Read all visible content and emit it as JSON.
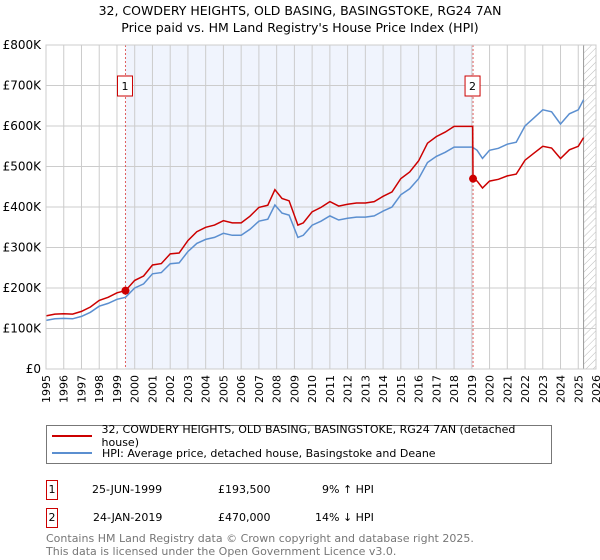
{
  "chart_data": {
    "type": "line",
    "title": "32, COWDERY HEIGHTS, OLD BASING, BASINGSTOKE, RG24 7AN",
    "subtitle": "Price paid vs. HM Land Registry's House Price Index (HPI)",
    "ylim": [
      0,
      800000
    ],
    "xlim": [
      1995,
      2026
    ],
    "yticks": [
      {
        "v": 0,
        "label": "£0"
      },
      {
        "v": 100000,
        "label": "£100K"
      },
      {
        "v": 200000,
        "label": "£200K"
      },
      {
        "v": 300000,
        "label": "£300K"
      },
      {
        "v": 400000,
        "label": "£400K"
      },
      {
        "v": 500000,
        "label": "£500K"
      },
      {
        "v": 600000,
        "label": "£600K"
      },
      {
        "v": 700000,
        "label": "£700K"
      },
      {
        "v": 800000,
        "label": "£800K"
      }
    ],
    "xticks": [
      "1995",
      "1996",
      "1997",
      "1998",
      "1999",
      "2000",
      "2001",
      "2002",
      "2003",
      "2004",
      "2005",
      "2006",
      "2007",
      "2008",
      "2009",
      "2010",
      "2011",
      "2012",
      "2013",
      "2014",
      "2015",
      "2016",
      "2017",
      "2018",
      "2019",
      "2020",
      "2021",
      "2022",
      "2023",
      "2024",
      "2025",
      "2026"
    ],
    "hpi": {
      "name": "HPI: Average price, detached house, Basingstoke and Deane",
      "color": "#5b8fd0",
      "x": [
        1995,
        1995.5,
        1996,
        1996.5,
        1997,
        1997.5,
        1998,
        1998.5,
        1999,
        1999.48,
        2000,
        2000.5,
        2001,
        2001.5,
        2002,
        2002.5,
        2003,
        2003.5,
        2004,
        2004.5,
        2005,
        2005.5,
        2006,
        2006.5,
        2007,
        2007.5,
        2007.9,
        2008.3,
        2008.7,
        2009.2,
        2009.5,
        2010,
        2010.5,
        2011,
        2011.5,
        2012,
        2012.5,
        2013,
        2013.5,
        2014,
        2014.5,
        2015,
        2015.5,
        2016,
        2016.5,
        2017,
        2017.5,
        2018,
        2018.5,
        2019,
        2019.07,
        2019.3,
        2019.6,
        2020,
        2020.5,
        2021,
        2021.5,
        2022,
        2022.5,
        2023,
        2023.5,
        2024,
        2024.5,
        2025,
        2025.3
      ],
      "y": [
        120000,
        124000,
        125000,
        124000,
        130000,
        140000,
        155000,
        162000,
        172000,
        177000,
        200000,
        210000,
        235000,
        238000,
        260000,
        262000,
        290000,
        310000,
        320000,
        325000,
        335000,
        330000,
        330000,
        345000,
        365000,
        370000,
        405000,
        385000,
        380000,
        325000,
        330000,
        355000,
        365000,
        378000,
        368000,
        372000,
        375000,
        375000,
        378000,
        390000,
        400000,
        430000,
        445000,
        470000,
        510000,
        525000,
        535000,
        548000,
        548000,
        548000,
        547000,
        540000,
        520000,
        540000,
        545000,
        555000,
        560000,
        600000,
        620000,
        640000,
        635000,
        605000,
        630000,
        640000,
        665000
      ]
    },
    "property": {
      "name": "32, COWDERY HEIGHTS, OLD BASING, BASINGSTOKE, RG24 7AN (detached house)",
      "color": "#cc0000"
    },
    "sales": [
      {
        "id": "1",
        "year": 1999.48,
        "price": 193500
      },
      {
        "id": "2",
        "year": 2019.07,
        "price": 470000
      }
    ],
    "shaded_range": [
      1999.48,
      2019.07
    ],
    "forecast_from": 2025.3
  },
  "legend": {
    "property": "32, COWDERY HEIGHTS, OLD BASING, BASINGSTOKE, RG24 7AN (detached house)",
    "hpi": "HPI: Average price, detached house, Basingstoke and Deane"
  },
  "table": [
    {
      "id": "1",
      "date": "25-JUN-1999",
      "price": "£193,500",
      "delta": "9% ↑ HPI"
    },
    {
      "id": "2",
      "date": "24-JAN-2019",
      "price": "£470,000",
      "delta": "14% ↓ HPI"
    }
  ],
  "footer": {
    "line1": "Contains HM Land Registry data © Crown copyright and database right 2025.",
    "line2": "This data is licensed under the Open Government Licence v3.0."
  }
}
